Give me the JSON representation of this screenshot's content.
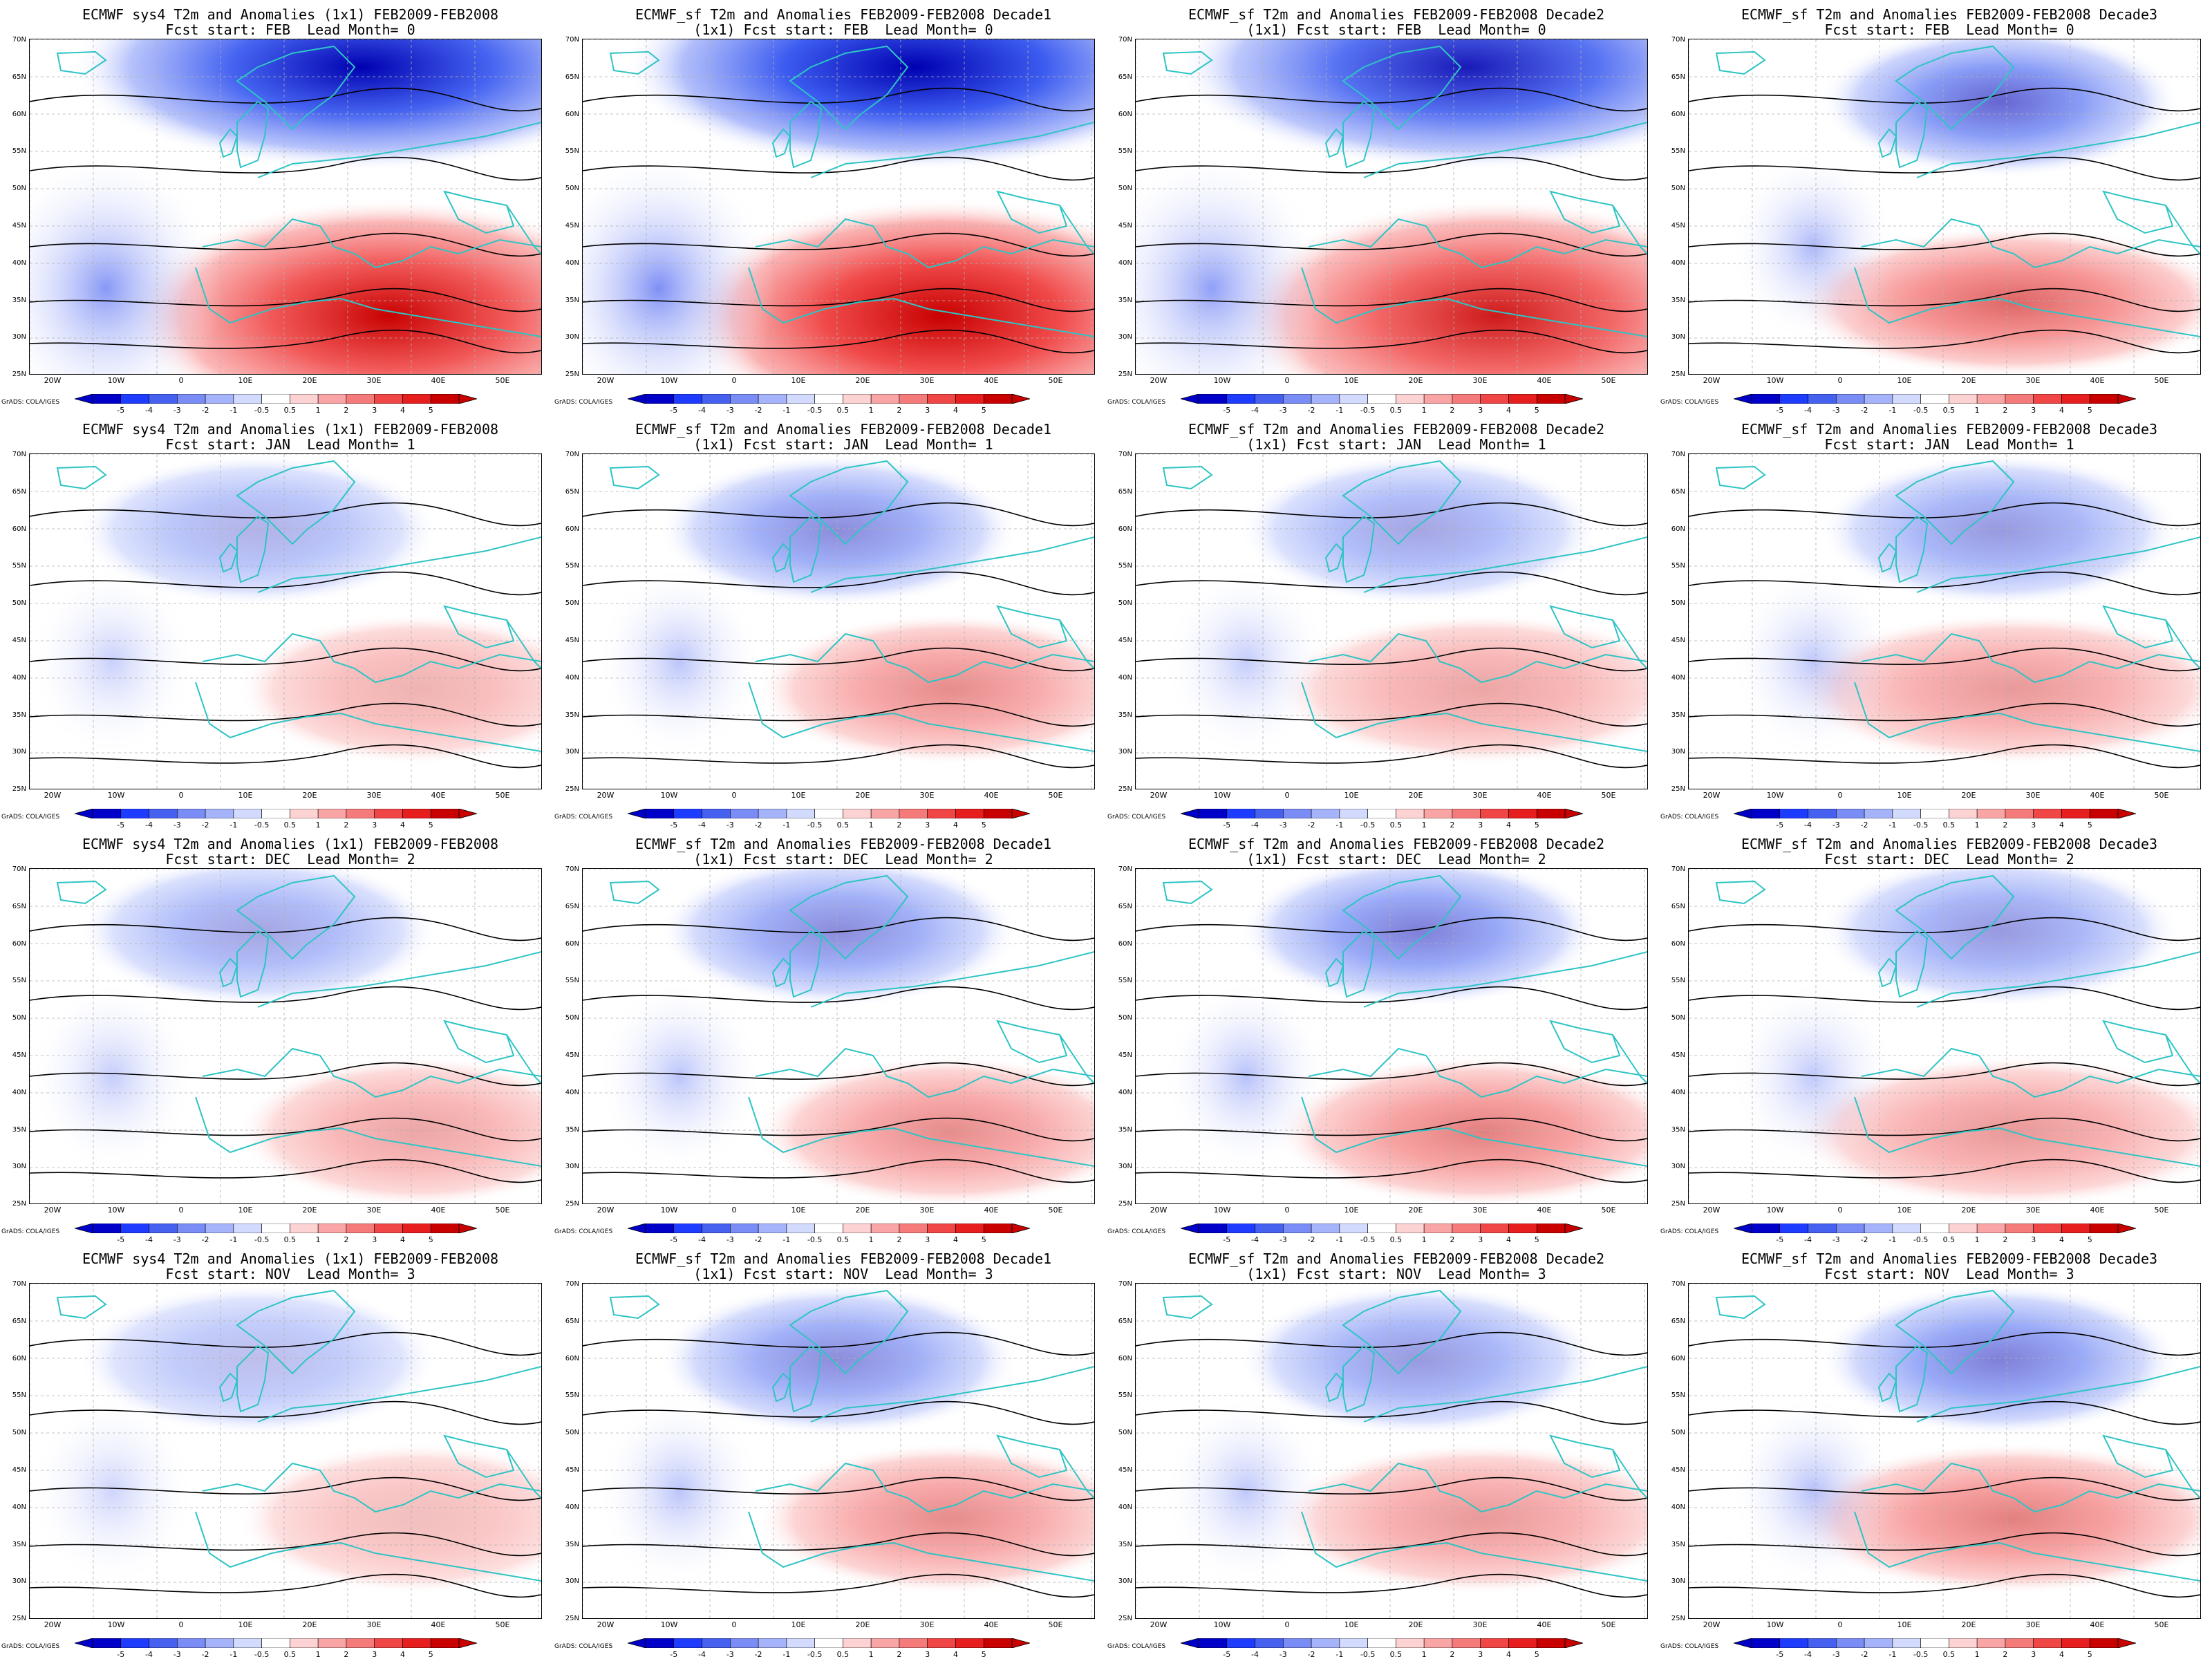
{
  "panels": [
    {
      "title_line1": "ECMWF sys4 T2m and Anomalies (1x1) FEB2009-FEB2008",
      "title_line2": "Fcst start: FEB  Lead Month= 0",
      "intensity": 1.0
    },
    {
      "title_line1": "ECMWF_sf T2m and Anomalies FEB2009-FEB2008 Decade1",
      "title_line2": "(1x1) Fcst start: FEB  Lead Month= 0",
      "intensity": 1.1
    },
    {
      "title_line1": "ECMWF_sf T2m and Anomalies FEB2009-FEB2008 Decade2",
      "title_line2": "(1x1) Fcst start: FEB  Lead Month= 0",
      "intensity": 0.9
    },
    {
      "title_line1": "ECMWF_sf T2m and Anomalies FEB2009-FEB2008 Decade3",
      "title_line2": "Fcst start: FEB  Lead Month= 0",
      "intensity": 0.6
    },
    {
      "title_line1": "ECMWF sys4 T2m and Anomalies (1x1) FEB2009-FEB2008",
      "title_line2": "Fcst start: JAN  Lead Month= 1",
      "intensity": 0.3
    },
    {
      "title_line1": "ECMWF_sf T2m and Anomalies FEB2009-FEB2008 Decade1",
      "title_line2": "(1x1) Fcst start: JAN  Lead Month= 1",
      "intensity": 0.45
    },
    {
      "title_line1": "ECMWF_sf T2m and Anomalies FEB2009-FEB2008 Decade2",
      "title_line2": "(1x1) Fcst start: JAN  Lead Month= 1",
      "intensity": 0.35
    },
    {
      "title_line1": "ECMWF_sf T2m and Anomalies FEB2009-FEB2008 Decade3",
      "title_line2": "Fcst start: JAN  Lead Month= 1",
      "intensity": 0.4
    },
    {
      "title_line1": "ECMWF sys4 T2m and Anomalies (1x1) FEB2009-FEB2008",
      "title_line2": "Fcst start: DEC  Lead Month= 2",
      "intensity": 0.35
    },
    {
      "title_line1": "ECMWF_sf T2m and Anomalies FEB2009-FEB2008 Decade1",
      "title_line2": "(1x1) Fcst start: DEC  Lead Month= 2",
      "intensity": 0.45
    },
    {
      "title_line1": "ECMWF_sf T2m and Anomalies FEB2009-FEB2008 Decade2",
      "title_line2": "(1x1) Fcst start: DEC  Lead Month= 2",
      "intensity": 0.5
    },
    {
      "title_line1": "ECMWF_sf T2m and Anomalies FEB2009-FEB2008 Decade3",
      "title_line2": "Fcst start: DEC  Lead Month= 2",
      "intensity": 0.4
    },
    {
      "title_line1": "ECMWF sys4 T2m and Anomalies (1x1) FEB2009-FEB2008",
      "title_line2": "Fcst start: NOV  Lead Month= 3",
      "intensity": 0.25
    },
    {
      "title_line1": "ECMWF_sf T2m and Anomalies FEB2009-FEB2008 Decade1",
      "title_line2": "(1x1) Fcst start: NOV  Lead Month= 3",
      "intensity": 0.45
    },
    {
      "title_line1": "ECMWF_sf T2m and Anomalies FEB2009-FEB2008 Decade2",
      "title_line2": "(1x1) Fcst start: NOV  Lead Month= 3",
      "intensity": 0.4
    },
    {
      "title_line1": "ECMWF_sf T2m and Anomalies FEB2009-FEB2008 Decade3",
      "title_line2": "Fcst start: NOV  Lead Month= 3",
      "intensity": 0.5
    }
  ],
  "lat_labels": [
    "70N",
    "65N",
    "60N",
    "55N",
    "50N",
    "45N",
    "40N",
    "35N",
    "30N",
    "25N"
  ],
  "lon_labels": [
    "20W",
    "10W",
    "0",
    "10E",
    "20E",
    "30E",
    "40E",
    "50E"
  ],
  "colorbar_ticks": [
    "-5",
    "-4",
    "-3",
    "-2",
    "-1",
    "-0.5",
    "0.5",
    "1",
    "2",
    "3",
    "4",
    "5"
  ],
  "colorbar_colors": [
    "#0000c8",
    "#1e3cff",
    "#4660f0",
    "#7a8cf5",
    "#a5b4fa",
    "#d2dafd",
    "#ffffff",
    "#fdd2d2",
    "#faa5a5",
    "#f57a7a",
    "#f04646",
    "#e61e1e",
    "#c80000"
  ],
  "credit": "GrADS: COLA/IGES",
  "colors": {
    "coastline": "#2ec4c4",
    "contour": "#000000"
  }
}
